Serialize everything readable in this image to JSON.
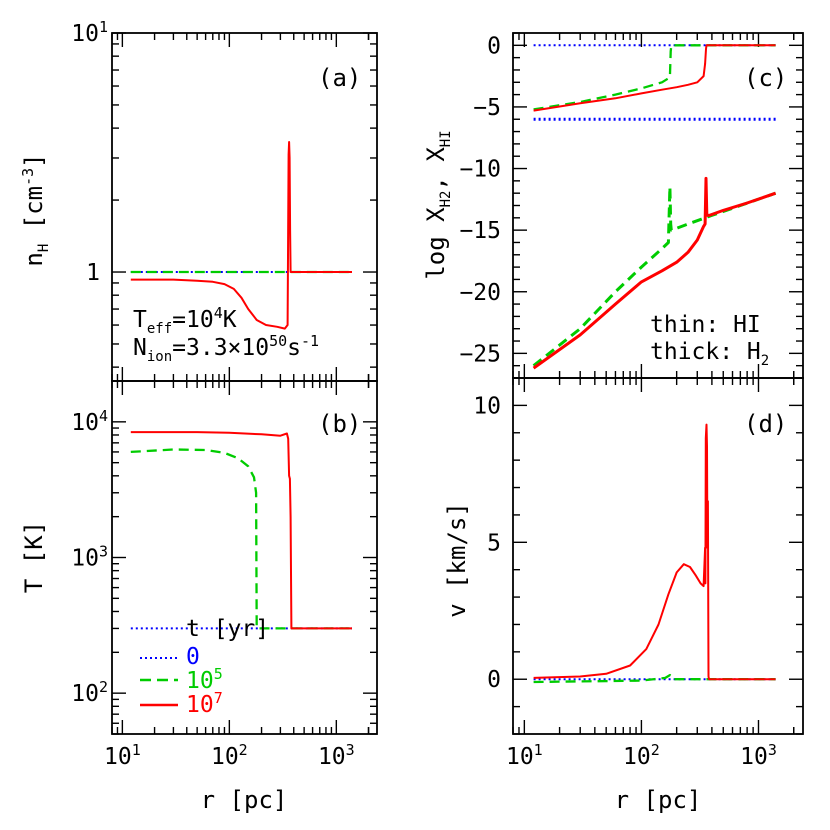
{
  "figure": {
    "axis_titles": {
      "r": "r [pc]",
      "nH": "n",
      "nH_sub": "H",
      "nH_unit": " [cm",
      "nH_unit_exp": "-3",
      "nH_unit_close": "]",
      "T": "T [K]",
      "logX": "log X",
      "logX_sub1": "H2",
      "logX_mid": ", X",
      "logX_sub2": "HI",
      "v": "v [km/s]"
    },
    "annotations": {
      "teff_main": "T",
      "teff_sub": "eff",
      "teff_value": "=10",
      "teff_exp": "4",
      "teff_unit": "K",
      "nion_main": "N",
      "nion_sub": "ion",
      "nion_value": "=3.3×10",
      "nion_exp": "50",
      "nion_unit": "s",
      "nion_unit_exp": "-1",
      "thin_label": "thin: HI",
      "thick_label": "thick: H",
      "thick_sub": "2",
      "legend_title": "t [yr]"
    }
  },
  "chart_data": [
    {
      "panel": "(a)",
      "type": "line",
      "xscale": "log",
      "yscale": "log",
      "xlim": [
        8,
        2400
      ],
      "ylim": [
        0.35,
        10
      ],
      "xticks": [
        {
          "base": "10",
          "exp": "1"
        },
        {
          "base": "10",
          "exp": "2"
        },
        {
          "base": "10",
          "exp": "3"
        }
      ],
      "xtick_values": [
        10,
        100,
        1000
      ],
      "yticks": [
        {
          "value": 1,
          "base": "1",
          "exp": ""
        },
        {
          "value": 10,
          "base": "10",
          "exp": "1"
        }
      ],
      "series": [
        {
          "name": "0",
          "color": "#0000ff",
          "style": "dotted",
          "x": [
            12,
            1400
          ],
          "y": [
            1.0,
            1.0
          ]
        },
        {
          "name": "10⁵",
          "color": "#00cc00",
          "style": "dashed",
          "x": [
            12,
            1400
          ],
          "y": [
            1.0,
            1.0
          ]
        },
        {
          "name": "10⁷",
          "color": "#ff0000",
          "style": "solid",
          "x": [
            12,
            30,
            50,
            70,
            90,
            110,
            130,
            150,
            180,
            220,
            280,
            330,
            350,
            358,
            362,
            366,
            370,
            374,
            380,
            1400
          ],
          "y": [
            0.93,
            0.93,
            0.92,
            0.91,
            0.89,
            0.85,
            0.78,
            0.7,
            0.63,
            0.6,
            0.59,
            0.58,
            0.6,
            3.1,
            3.5,
            3.0,
            1.5,
            1.0,
            1.0,
            1.0
          ]
        }
      ]
    },
    {
      "panel": "(b)",
      "type": "line",
      "xscale": "log",
      "yscale": "log",
      "xlim": [
        8,
        2400
      ],
      "ylim": [
        50,
        20000
      ],
      "xticks": [
        {
          "base": "10",
          "exp": "1"
        },
        {
          "base": "10",
          "exp": "2"
        },
        {
          "base": "10",
          "exp": "3"
        }
      ],
      "xtick_values": [
        10,
        100,
        1000
      ],
      "yticks": [
        {
          "value": 100,
          "base": "10",
          "exp": "2"
        },
        {
          "value": 1000,
          "base": "10",
          "exp": "3"
        },
        {
          "value": 10000,
          "base": "10",
          "exp": "4"
        }
      ],
      "series": [
        {
          "name": "0",
          "color": "#0000ff",
          "style": "dotted",
          "x": [
            12,
            1400
          ],
          "y": [
            300,
            300
          ]
        },
        {
          "name": "10⁵",
          "color": "#00cc00",
          "style": "dashed",
          "x": [
            12,
            30,
            60,
            90,
            120,
            150,
            170,
            178,
            180,
            184,
            1400
          ],
          "y": [
            6000,
            6250,
            6200,
            5900,
            5400,
            4700,
            3900,
            3000,
            300,
            300,
            300
          ]
        },
        {
          "name": "10⁷",
          "color": "#ff0000",
          "style": "solid",
          "x": [
            12,
            50,
            100,
            200,
            300,
            345,
            355,
            362,
            368,
            374,
            380,
            386,
            1400
          ],
          "y": [
            8400,
            8400,
            8300,
            8100,
            7900,
            8200,
            7500,
            4000,
            3800,
            2000,
            300,
            300,
            300
          ]
        }
      ]
    },
    {
      "panel": "(c)",
      "type": "line",
      "xscale": "log",
      "yscale": "linear",
      "xlim": [
        8,
        2400
      ],
      "ylim": [
        -27,
        1
      ],
      "xticks": [
        {
          "base": "10",
          "exp": "1"
        },
        {
          "base": "10",
          "exp": "2"
        },
        {
          "base": "10",
          "exp": "3"
        }
      ],
      "xtick_values": [
        10,
        100,
        1000
      ],
      "yticks": [
        {
          "value": 0,
          "label": "0"
        },
        {
          "value": -5,
          "label": "−5"
        },
        {
          "value": -10,
          "label": "−10"
        },
        {
          "value": -15,
          "label": "−15"
        },
        {
          "value": -20,
          "label": "−20"
        },
        {
          "value": -25,
          "label": "−25"
        }
      ],
      "series": [
        {
          "name": "0",
          "color": "#0000ff",
          "style": "dotted",
          "x": [
            12,
            1400
          ],
          "y": [
            0,
            0
          ]
        },
        {
          "name": "0",
          "color": "#0000ff",
          "style": "dotted-thick",
          "x": [
            12,
            1400
          ],
          "y": [
            -6,
            -6
          ]
        },
        {
          "name": "10⁵",
          "color": "#00cc00",
          "style": "dashed",
          "x": [
            12,
            30,
            60,
            100,
            150,
            175,
            178,
            180,
            1400
          ],
          "y": [
            -5.2,
            -4.6,
            -4.0,
            -3.5,
            -3.0,
            -2.6,
            -0.5,
            0,
            0
          ]
        },
        {
          "name": "10⁵",
          "color": "#00cc00",
          "style": "dashed-thick",
          "x": [
            12,
            30,
            60,
            100,
            150,
            170,
            175,
            178,
            180,
            182,
            250,
            400,
            700,
            1400
          ],
          "y": [
            -26,
            -23,
            -20,
            -18,
            -16.5,
            -16,
            -11.5,
            -14.5,
            -15,
            -15,
            -14.5,
            -13.8,
            -13,
            -12
          ]
        },
        {
          "name": "10⁷",
          "color": "#ff0000",
          "style": "solid",
          "x": [
            12,
            30,
            60,
            100,
            150,
            200,
            250,
            300,
            340,
            350,
            356,
            360,
            1400
          ],
          "y": [
            -5.3,
            -4.7,
            -4.3,
            -3.9,
            -3.6,
            -3.4,
            -3.2,
            -3.0,
            -2.5,
            -1.5,
            -0.3,
            0,
            0
          ]
        },
        {
          "name": "10⁷",
          "color": "#ff0000",
          "style": "solid-thick",
          "x": [
            12,
            30,
            60,
            100,
            150,
            200,
            250,
            300,
            340,
            350,
            356,
            362,
            368,
            380,
            500,
            800,
            1400
          ],
          "y": [
            -26.2,
            -23.5,
            -21,
            -19.2,
            -18.3,
            -17.6,
            -16.8,
            -15.8,
            -14.7,
            -14.5,
            -10.8,
            -13.7,
            -13.8,
            -13.8,
            -13.4,
            -12.8,
            -12
          ]
        }
      ]
    },
    {
      "panel": "(d)",
      "type": "line",
      "xscale": "log",
      "yscale": "linear",
      "xlim": [
        8,
        2400
      ],
      "ylim": [
        -2,
        11
      ],
      "xticks": [
        {
          "base": "10",
          "exp": "1"
        },
        {
          "base": "10",
          "exp": "2"
        },
        {
          "base": "10",
          "exp": "3"
        }
      ],
      "xtick_values": [
        10,
        100,
        1000
      ],
      "yticks": [
        {
          "value": 0,
          "label": "0"
        },
        {
          "value": 5,
          "label": "5"
        },
        {
          "value": 10,
          "label": "10"
        }
      ],
      "series": [
        {
          "name": "0",
          "color": "#0000ff",
          "style": "dotted",
          "x": [
            12,
            1400
          ],
          "y": [
            0,
            0
          ]
        },
        {
          "name": "10⁵",
          "color": "#00cc00",
          "style": "dashed",
          "x": [
            12,
            100,
            160,
            175,
            180,
            185,
            1400
          ],
          "y": [
            -0.1,
            -0.05,
            0.05,
            0.15,
            0.1,
            0,
            0
          ]
        },
        {
          "name": "10⁷",
          "color": "#ff0000",
          "style": "solid",
          "x": [
            12,
            30,
            50,
            80,
            110,
            140,
            170,
            200,
            230,
            260,
            290,
            320,
            340,
            350,
            352,
            355,
            360,
            363,
            366,
            370,
            374,
            378,
            1400
          ],
          "y": [
            0.05,
            0.1,
            0.2,
            0.5,
            1.1,
            2.0,
            3.1,
            3.9,
            4.2,
            4.1,
            3.8,
            3.5,
            3.4,
            4.8,
            3.5,
            8.8,
            9.3,
            8.5,
            4.8,
            6.5,
            0.1,
            0,
            0
          ]
        }
      ]
    }
  ],
  "legend": {
    "title": "t [yr]",
    "entries": [
      {
        "label": "0",
        "color": "#0000ff",
        "style": "dotted"
      },
      {
        "label": "10",
        "exp": "5",
        "color": "#00cc00",
        "style": "dashed"
      },
      {
        "label": "10",
        "exp": "7",
        "color": "#ff0000",
        "style": "solid"
      }
    ]
  }
}
